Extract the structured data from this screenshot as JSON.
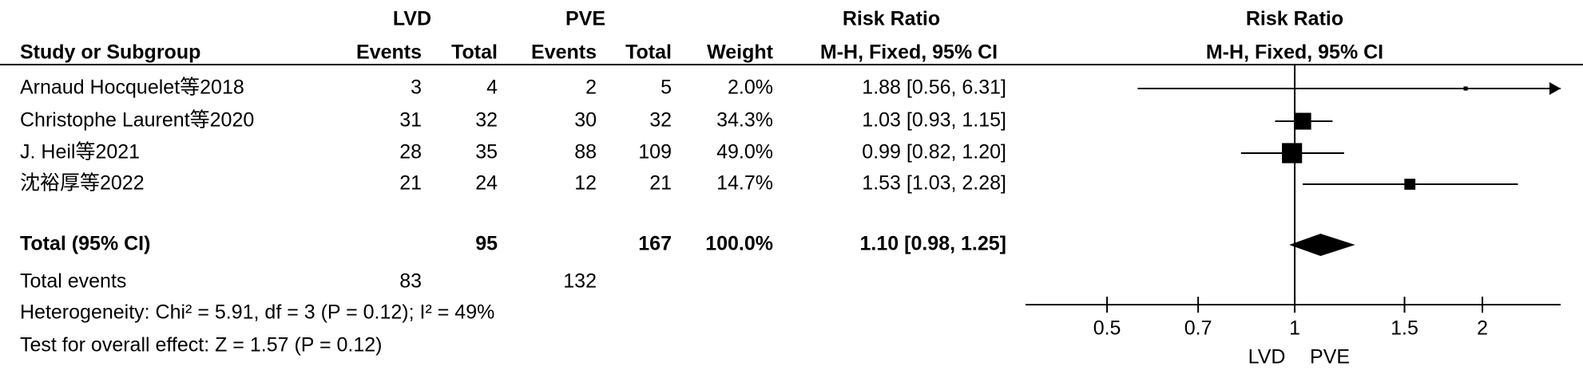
{
  "chart_data": {
    "type": "forest",
    "headers": {
      "group": [
        "LVD",
        "PVE",
        "Risk Ratio"
      ],
      "columns": [
        "Study or Subgroup",
        "Events",
        "Total",
        "Events",
        "Total",
        "Weight",
        "M-H, Fixed, 95% CI"
      ],
      "plot": [
        "Risk Ratio",
        "M-H, Fixed, 95% CI"
      ]
    },
    "studies": [
      {
        "name": "Arnaud Hocquelet等2018",
        "lvd_events": 3,
        "lvd_total": 4,
        "pve_events": 2,
        "pve_total": 5,
        "weight": 2.0,
        "weight_label": "2.0%",
        "rr": 1.88,
        "ci": [
          0.56,
          6.31
        ],
        "rr_label": "1.88 [0.56, 6.31]"
      },
      {
        "name": "Christophe Laurent等2020",
        "lvd_events": 31,
        "lvd_total": 32,
        "pve_events": 30,
        "pve_total": 32,
        "weight": 34.3,
        "weight_label": "34.3%",
        "rr": 1.03,
        "ci": [
          0.93,
          1.15
        ],
        "rr_label": "1.03 [0.93, 1.15]"
      },
      {
        "name": "J. Heil等2021",
        "lvd_events": 28,
        "lvd_total": 35,
        "pve_events": 88,
        "pve_total": 109,
        "weight": 49.0,
        "weight_label": "49.0%",
        "rr": 0.99,
        "ci": [
          0.82,
          1.2
        ],
        "rr_label": "0.99 [0.82, 1.20]"
      },
      {
        "name": "沈裕厚等2022",
        "lvd_events": 21,
        "lvd_total": 24,
        "pve_events": 12,
        "pve_total": 21,
        "weight": 14.7,
        "weight_label": "14.7%",
        "rr": 1.53,
        "ci": [
          1.03,
          2.28
        ],
        "rr_label": "1.53 [1.03, 2.28]"
      }
    ],
    "total": {
      "label": "Total (95% CI)",
      "lvd_total": 95,
      "pve_total": 167,
      "weight_label": "100.0%",
      "rr": 1.1,
      "ci": [
        0.98,
        1.25
      ],
      "rr_label": "1.10 [0.98, 1.25]"
    },
    "total_events": {
      "label": "Total events",
      "lvd": 83,
      "pve": 132
    },
    "heterogeneity": "Heterogeneity: Chi² = 5.91, df = 3 (P = 0.12); I² = 49%",
    "overall_effect": "Test for overall effect: Z = 1.57 (P = 0.12)",
    "xlim": [
      0.37,
      2.67
    ],
    "xticks": [
      0.5,
      0.7,
      1,
      1.5,
      2
    ],
    "log_x": true,
    "favours": [
      "LVD",
      "PVE"
    ],
    "color": "#000000"
  }
}
